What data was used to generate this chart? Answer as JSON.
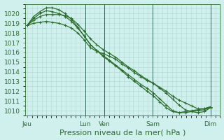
{
  "xlabel": "Pression niveau de la mer( hPa )",
  "background_color": "#d0f0ee",
  "grid_color": "#b0d8d0",
  "line_color": "#2d6e2d",
  "ylim": [
    1009.5,
    1021.0
  ],
  "yticks": [
    1010,
    1011,
    1012,
    1013,
    1014,
    1015,
    1016,
    1017,
    1018,
    1019,
    1020
  ],
  "x_tick_labels": [
    "Jeu",
    "Lun",
    "Ven",
    "Sam",
    "Dim"
  ],
  "x_tick_positions": [
    0,
    3,
    4,
    6.5,
    9.5
  ],
  "xlim": [
    -0.1,
    10.0
  ],
  "series": [
    [
      1018.8,
      1019.0,
      1019.1,
      1019.2,
      1019.1,
      1019.0,
      1018.8,
      1018.5,
      1018.0,
      1017.3,
      1016.5,
      1016.1,
      1015.9,
      1015.6,
      1015.3,
      1014.8,
      1014.4,
      1013.9,
      1013.5,
      1013.1,
      1012.8,
      1012.4,
      1012.0,
      1011.5,
      1011.1,
      1010.8,
      1010.5,
      1010.2,
      1010.2,
      1010.4
    ],
    [
      1018.8,
      1019.3,
      1019.7,
      1019.9,
      1019.9,
      1019.9,
      1019.8,
      1019.5,
      1018.9,
      1018.2,
      1017.4,
      1016.8,
      1016.3,
      1015.9,
      1015.5,
      1015.0,
      1014.5,
      1014.1,
      1013.6,
      1013.2,
      1012.8,
      1012.3,
      1011.8,
      1011.2,
      1010.6,
      1010.1,
      1009.9,
      1009.8,
      1009.9,
      1010.3
    ],
    [
      1018.8,
      1019.5,
      1020.0,
      1020.3,
      1020.2,
      1020.0,
      1019.7,
      1019.2,
      1018.5,
      1017.7,
      1016.8,
      1016.2,
      1015.7,
      1015.2,
      1014.7,
      1014.2,
      1013.7,
      1013.2,
      1012.7,
      1012.3,
      1011.8,
      1011.2,
      1010.6,
      1010.0,
      1009.8,
      1009.8,
      1009.9,
      1010.0,
      1010.1,
      1010.3
    ],
    [
      1018.8,
      1019.7,
      1020.2,
      1020.6,
      1020.6,
      1020.4,
      1020.0,
      1019.4,
      1018.6,
      1017.7,
      1016.8,
      1016.2,
      1015.6,
      1015.1,
      1014.6,
      1014.1,
      1013.5,
      1013.0,
      1012.5,
      1012.0,
      1011.5,
      1010.9,
      1010.3,
      1009.9,
      1009.8,
      1009.9,
      1010.0,
      1010.1,
      1010.2,
      1010.4
    ]
  ],
  "marker": "+",
  "marker_size": 3.5,
  "line_width": 0.9,
  "tick_fontsize": 6.5,
  "xlabel_fontsize": 8,
  "dark_vline_positions": [
    3.0,
    4.0,
    6.5,
    9.5
  ]
}
